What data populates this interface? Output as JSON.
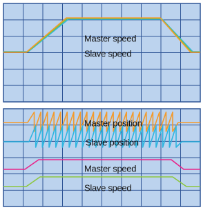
{
  "panels": [
    {
      "labels": [
        "Master speed",
        "Slave speed"
      ]
    },
    {
      "labels": [
        "Master position",
        "Slave position",
        "Master speed",
        "Slave speed"
      ]
    }
  ]
}
